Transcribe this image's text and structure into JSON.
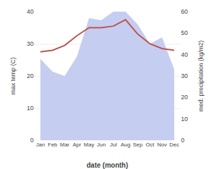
{
  "chart_data": {
    "type": "line",
    "categories": [
      "Jan",
      "Feb",
      "Mar",
      "Apr",
      "May",
      "Jun",
      "Jul",
      "Aug",
      "Sep",
      "Oct",
      "Nov",
      "Dec"
    ],
    "series": [
      {
        "type": "area",
        "axis": "y2",
        "color": "#c5cef0",
        "values": [
          38.0,
          32.0,
          30.0,
          39.0,
          57.0,
          56.0,
          60.0,
          60.0,
          54.0,
          45.0,
          48.0,
          33.0
        ]
      },
      {
        "type": "line",
        "color": "#c0504d",
        "values": [
          27.5,
          28.0,
          29.5,
          32.5,
          35.0,
          35.0,
          35.5,
          37.5,
          33.0,
          30.0,
          28.5,
          28.0
        ]
      }
    ],
    "xlabel": "date (month)",
    "ylabel": "max temp (C)",
    "y2label": "med. precipitation (kg/m2)",
    "ylim": [
      0,
      40
    ],
    "yticks": [
      0,
      10,
      20,
      30,
      40
    ],
    "y2lim": [
      0,
      60
    ],
    "y2ticks": [
      0,
      10,
      20,
      30,
      40,
      50,
      60
    ],
    "grid": true
  }
}
